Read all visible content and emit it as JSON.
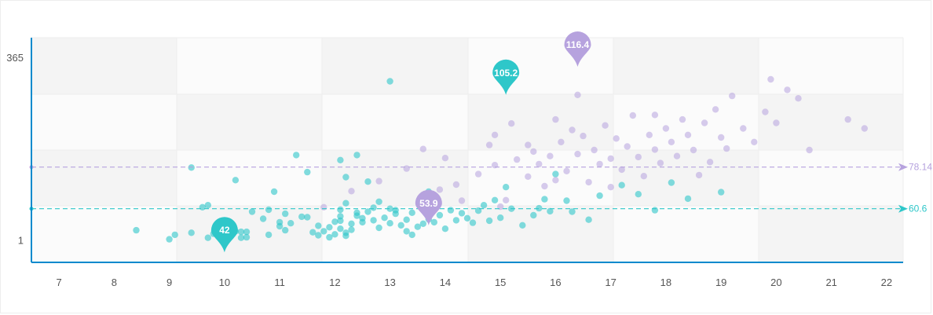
{
  "chart_data": {
    "type": "scatter",
    "title": "",
    "xlabel": "",
    "ylabel": "",
    "xlim": [
      6.5,
      22.3
    ],
    "ylim": [
      -44,
      404
    ],
    "x_ticks": [
      "7",
      "8",
      "9",
      "10",
      "11",
      "12",
      "13",
      "14",
      "15",
      "16",
      "17",
      "18",
      "19",
      "20",
      "21",
      "22"
    ],
    "y_ticks": [
      "1",
      "365"
    ],
    "grid": true,
    "legend": "none",
    "colors": {
      "teal": "#2ec7c9",
      "purple": "#b6a2de",
      "axis": "#008acd"
    },
    "series": [
      {
        "color": "#2ec7c9",
        "points": [
          [
            8.4,
            20
          ],
          [
            9.0,
            2
          ],
          [
            9.1,
            11
          ],
          [
            9.4,
            15
          ],
          [
            9.4,
            145
          ],
          [
            9.6,
            66
          ],
          [
            9.7,
            5
          ],
          [
            9.7,
            70
          ],
          [
            9.8,
            13
          ],
          [
            9.9,
            7
          ],
          [
            10.0,
            14
          ],
          [
            10.0,
            4
          ],
          [
            10.0,
            22
          ],
          [
            10.1,
            9
          ],
          [
            10.2,
            18
          ],
          [
            10.3,
            5
          ],
          [
            10.3,
            17
          ],
          [
            10.4,
            6
          ],
          [
            10.4,
            17
          ],
          [
            10.5,
            57
          ],
          [
            10.7,
            43
          ],
          [
            10.8,
            11
          ],
          [
            10.8,
            61
          ],
          [
            10.9,
            97
          ],
          [
            11.0,
            36
          ],
          [
            11.0,
            28
          ],
          [
            11.1,
            20
          ],
          [
            11.1,
            53
          ],
          [
            11.2,
            34
          ],
          [
            11.3,
            170
          ],
          [
            11.4,
            47
          ],
          [
            11.5,
            46
          ],
          [
            11.6,
            16
          ],
          [
            11.7,
            10
          ],
          [
            11.7,
            29
          ],
          [
            11.8,
            18
          ],
          [
            11.9,
            26
          ],
          [
            11.9,
            6
          ],
          [
            12.0,
            12
          ],
          [
            12.0,
            37
          ],
          [
            12.1,
            23
          ],
          [
            12.1,
            39
          ],
          [
            12.1,
            48
          ],
          [
            12.1,
            61
          ],
          [
            12.1,
            160
          ],
          [
            12.2,
            126
          ],
          [
            12.2,
            74
          ],
          [
            12.2,
            9
          ],
          [
            12.2,
            15
          ],
          [
            12.3,
            21
          ],
          [
            12.3,
            33
          ],
          [
            12.4,
            49
          ],
          [
            12.4,
            55
          ],
          [
            12.5,
            36
          ],
          [
            12.5,
            44
          ],
          [
            12.6,
            57
          ],
          [
            12.7,
            40
          ],
          [
            12.7,
            65
          ],
          [
            12.8,
            25
          ],
          [
            12.8,
            77
          ],
          [
            12.9,
            45
          ],
          [
            13.0,
            34
          ],
          [
            13.0,
            63
          ],
          [
            13.1,
            53
          ],
          [
            13.1,
            60
          ],
          [
            13.2,
            30
          ],
          [
            13.3,
            18
          ],
          [
            13.3,
            41
          ],
          [
            13.4,
            11
          ],
          [
            13.4,
            55
          ],
          [
            13.5,
            27
          ],
          [
            13.6,
            33
          ],
          [
            13.7,
            42
          ],
          [
            13.8,
            36
          ],
          [
            13.9,
            50
          ],
          [
            14.0,
            23
          ],
          [
            14.1,
            60
          ],
          [
            14.2,
            40
          ],
          [
            14.3,
            54
          ],
          [
            14.4,
            44
          ],
          [
            14.5,
            35
          ],
          [
            14.6,
            59
          ],
          [
            14.7,
            70
          ],
          [
            14.8,
            39
          ],
          [
            14.9,
            80
          ],
          [
            15.0,
            45
          ],
          [
            15.1,
            106
          ],
          [
            15.2,
            63
          ],
          [
            15.4,
            30
          ],
          [
            15.6,
            50
          ],
          [
            15.7,
            64
          ],
          [
            15.8,
            82
          ],
          [
            15.9,
            58
          ],
          [
            16.0,
            132
          ],
          [
            16.2,
            79
          ],
          [
            16.3,
            57
          ],
          [
            16.6,
            41
          ],
          [
            16.8,
            89
          ],
          [
            17.2,
            110
          ],
          [
            17.5,
            92
          ],
          [
            17.8,
            60
          ],
          [
            18.1,
            115
          ],
          [
            18.4,
            83
          ],
          [
            19.0,
            96
          ],
          [
            13.0,
            317
          ],
          [
            12.4,
            170
          ],
          [
            11.5,
            136
          ],
          [
            12.6,
            117
          ],
          [
            13.7,
            97
          ],
          [
            10.2,
            120
          ]
        ]
      },
      {
        "color": "#b6a2de",
        "points": [
          [
            11.8,
            66
          ],
          [
            12.3,
            98
          ],
          [
            12.8,
            118
          ],
          [
            13.3,
            143
          ],
          [
            13.6,
            182
          ],
          [
            14.0,
            164
          ],
          [
            14.2,
            111
          ],
          [
            14.6,
            132
          ],
          [
            14.8,
            190
          ],
          [
            14.9,
            210
          ],
          [
            15.1,
            80
          ],
          [
            15.2,
            233
          ],
          [
            15.3,
            161
          ],
          [
            15.5,
            127
          ],
          [
            15.6,
            177
          ],
          [
            15.7,
            152
          ],
          [
            15.8,
            108
          ],
          [
            15.9,
            168
          ],
          [
            16.0,
            241
          ],
          [
            16.1,
            196
          ],
          [
            16.2,
            138
          ],
          [
            16.3,
            220
          ],
          [
            16.4,
            172
          ],
          [
            16.5,
            208
          ],
          [
            16.6,
            116
          ],
          [
            16.7,
            180
          ],
          [
            16.8,
            152
          ],
          [
            16.9,
            229
          ],
          [
            17.0,
            163
          ],
          [
            17.1,
            203
          ],
          [
            17.2,
            141
          ],
          [
            17.3,
            187
          ],
          [
            17.4,
            249
          ],
          [
            17.5,
            166
          ],
          [
            17.6,
            128
          ],
          [
            17.7,
            210
          ],
          [
            17.8,
            181
          ],
          [
            17.9,
            154
          ],
          [
            18.0,
            223
          ],
          [
            18.1,
            196
          ],
          [
            18.2,
            168
          ],
          [
            18.3,
            241
          ],
          [
            18.4,
            210
          ],
          [
            18.5,
            180
          ],
          [
            18.7,
            234
          ],
          [
            18.8,
            156
          ],
          [
            18.9,
            261
          ],
          [
            19.0,
            205
          ],
          [
            19.1,
            183
          ],
          [
            19.2,
            288
          ],
          [
            19.4,
            223
          ],
          [
            19.6,
            196
          ],
          [
            19.8,
            256
          ],
          [
            20.0,
            234
          ],
          [
            20.2,
            300
          ],
          [
            20.4,
            283
          ],
          [
            20.6,
            180
          ],
          [
            21.3,
            241
          ],
          [
            21.6,
            223
          ],
          [
            19.9,
            321
          ],
          [
            14.3,
            79
          ],
          [
            14.9,
            150
          ],
          [
            16.4,
            290
          ],
          [
            17.0,
            106
          ],
          [
            15.0,
            67
          ],
          [
            13.9,
            101
          ],
          [
            15.5,
            190
          ],
          [
            16.0,
            120
          ],
          [
            18.6,
            130
          ],
          [
            17.8,
            250
          ]
        ]
      }
    ],
    "markers": [
      {
        "label": "42",
        "x": 10.0,
        "y": -24,
        "color": "#2ec7c9"
      },
      {
        "label": "105.2",
        "x": 15.1,
        "y": 290,
        "color": "#2ec7c9"
      },
      {
        "label": "53.9",
        "x": 13.7,
        "y": 30,
        "color": "#b6a2de"
      },
      {
        "label": "116.4",
        "x": 16.4,
        "y": 346,
        "color": "#b6a2de"
      }
    ],
    "ref_lines": [
      {
        "label": "78.14",
        "y": 146,
        "color": "#b6a2de"
      },
      {
        "label": "60.6",
        "y": 63,
        "color": "#2ec7c9"
      }
    ]
  }
}
